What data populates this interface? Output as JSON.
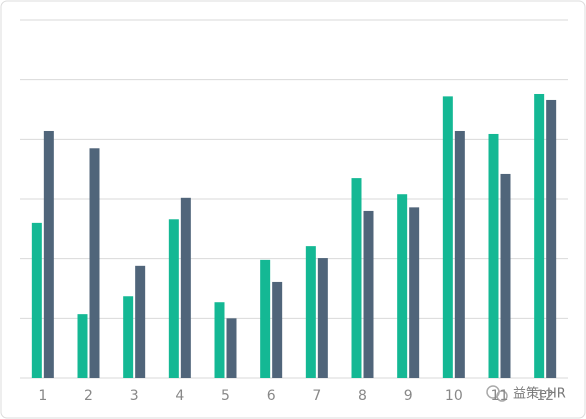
{
  "chart_data": {
    "type": "bar",
    "categories": [
      "1",
      "2",
      "3",
      "4",
      "5",
      "6",
      "7",
      "8",
      "9",
      "10",
      "11",
      "12"
    ],
    "series": [
      {
        "color": "#14b894",
        "values": [
          2.6,
          1.07,
          1.37,
          2.66,
          1.27,
          1.98,
          2.21,
          3.35,
          3.08,
          4.72,
          4.09,
          4.76
        ]
      },
      {
        "color": "#50657a",
        "values": [
          4.14,
          3.85,
          1.88,
          3.02,
          1.0,
          1.61,
          2.01,
          2.8,
          2.86,
          4.14,
          3.42,
          4.66
        ]
      }
    ],
    "ylim": [
      0,
      6
    ],
    "yticks": [
      0,
      1,
      2,
      3,
      4,
      5,
      6
    ],
    "grid": true
  },
  "watermark": "益策eHR"
}
